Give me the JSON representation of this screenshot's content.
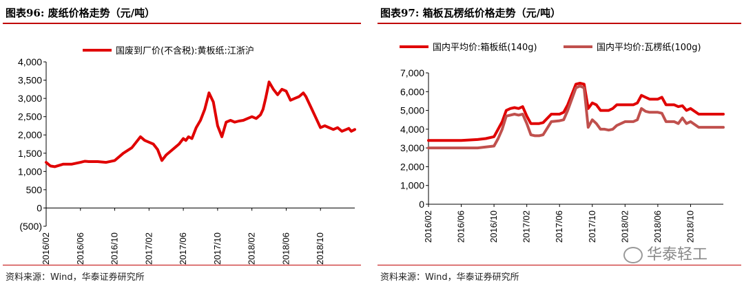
{
  "left": {
    "title": "图表96:   废纸价格走势（元/吨）",
    "source": "资料来源：Wind，华泰证券研究所",
    "chart_data": {
      "type": "line",
      "ylim": [
        -500,
        4000
      ],
      "yticks": [
        "(500)",
        "0",
        "500",
        "1,000",
        "1,500",
        "2,000",
        "2,500",
        "3,000",
        "3,500",
        "4,000"
      ],
      "ytick_values": [
        -500,
        0,
        500,
        1000,
        1500,
        2000,
        2500,
        3000,
        3500,
        4000
      ],
      "xticks": [
        "2016/02",
        "2016/06",
        "2016/10",
        "2017/02",
        "2017/06",
        "2017/10",
        "2018/02",
        "2018/06",
        "2018/10"
      ],
      "xrange": [
        0,
        36
      ],
      "legend_position": "top",
      "series": [
        {
          "name": "国废到厂价(不含税):黄板纸:江浙沪",
          "color": "#e00000",
          "x": [
            0,
            0.5,
            1,
            2,
            3,
            4,
            4.5,
            5,
            6,
            7,
            8,
            9,
            10,
            10.5,
            11,
            11.5,
            12,
            12.5,
            13,
            13.5,
            14,
            14.5,
            15,
            15.5,
            16,
            16.3,
            16.6,
            17,
            17.5,
            18,
            18.5,
            19,
            19.5,
            20,
            20.5,
            21,
            21.5,
            22,
            22.5,
            23,
            23.5,
            24,
            24.5,
            25,
            25.3,
            25.6,
            26,
            26.5,
            27,
            27.5,
            28,
            28.5,
            29,
            29.5,
            30,
            30.3,
            30.6,
            31,
            31.5,
            32,
            32.5,
            33,
            33.5,
            34,
            34.5,
            35,
            35.3,
            35.6,
            36
          ],
          "values": [
            1250,
            1150,
            1130,
            1200,
            1200,
            1250,
            1280,
            1270,
            1270,
            1250,
            1300,
            1500,
            1650,
            1800,
            1950,
            1850,
            1800,
            1750,
            1600,
            1300,
            1450,
            1550,
            1650,
            1750,
            1900,
            1850,
            1950,
            1900,
            2200,
            2400,
            2700,
            3150,
            2900,
            2250,
            1950,
            2350,
            2400,
            2350,
            2380,
            2400,
            2450,
            2500,
            2450,
            2550,
            2700,
            3000,
            3450,
            3250,
            3100,
            3250,
            3200,
            2950,
            3000,
            3050,
            3150,
            3050,
            2900,
            2700,
            2450,
            2200,
            2250,
            2200,
            2150,
            2200,
            2100,
            2150,
            2180,
            2100,
            2150
          ]
        }
      ]
    }
  },
  "right": {
    "title": "图表97:   箱板瓦楞纸价格走势（元/吨）",
    "source": "资料来源：Wind，华泰证券研究所",
    "chart_data": {
      "type": "line",
      "ylim": [
        0,
        7000
      ],
      "yticks": [
        "0",
        "1,000",
        "2,000",
        "3,000",
        "4,000",
        "5,000",
        "6,000",
        "7,000"
      ],
      "ytick_values": [
        0,
        1000,
        2000,
        3000,
        4000,
        5000,
        6000,
        7000
      ],
      "xticks": [
        "2016/02",
        "2016/06",
        "2016/10",
        "2017/02",
        "2017/06",
        "2017/10",
        "2018/02",
        "2018/06",
        "2018/10"
      ],
      "xrange": [
        0,
        36
      ],
      "legend_position": "top",
      "series": [
        {
          "name": "国内平均价:箱板纸(140g)",
          "color": "#e00000",
          "x": [
            0,
            2,
            4,
            6,
            7,
            8,
            8.5,
            9,
            9.5,
            10,
            10.5,
            11,
            11.5,
            12,
            12.5,
            13,
            13.5,
            14,
            15,
            16,
            16.5,
            17,
            18,
            18.5,
            19,
            19.5,
            20,
            20.5,
            21,
            21.5,
            22,
            22.5,
            23,
            24,
            25,
            25.5,
            26,
            26.5,
            27,
            28,
            28.5,
            29,
            30,
            30.5,
            31,
            31.5,
            32,
            33,
            34,
            35,
            36
          ],
          "values": [
            3400,
            3400,
            3400,
            3450,
            3500,
            3600,
            4000,
            4400,
            5000,
            5100,
            5150,
            5100,
            5200,
            4700,
            4300,
            4300,
            4300,
            4350,
            4800,
            4800,
            4900,
            5300,
            6400,
            6450,
            6400,
            5100,
            5400,
            5300,
            5000,
            5000,
            5000,
            5100,
            5300,
            5300,
            5300,
            5400,
            5800,
            5700,
            5600,
            5600,
            5700,
            5300,
            5300,
            5200,
            5250,
            5000,
            5100,
            4800,
            4800,
            4800,
            4800
          ]
        },
        {
          "name": "国内平均价:瓦楞纸(100g)",
          "color": "#c0504d",
          "x": [
            0,
            2,
            4,
            6,
            7,
            8,
            8.5,
            9,
            9.5,
            10,
            10.5,
            11,
            11.5,
            12,
            12.5,
            13,
            13.5,
            14,
            15,
            16,
            16.5,
            17,
            18,
            18.5,
            19,
            19.5,
            20,
            20.5,
            21,
            21.5,
            22,
            22.5,
            23,
            24,
            25,
            25.5,
            26,
            26.5,
            27,
            28,
            28.5,
            29,
            30,
            30.5,
            31,
            31.5,
            32,
            33,
            34,
            35,
            36
          ],
          "values": [
            3000,
            3000,
            3000,
            3000,
            3050,
            3100,
            3500,
            4000,
            4700,
            4750,
            4800,
            4750,
            4800,
            4300,
            3700,
            3650,
            3650,
            3700,
            4400,
            4450,
            4500,
            5000,
            6200,
            6300,
            6200,
            4100,
            4500,
            4300,
            4000,
            4000,
            3950,
            4000,
            4200,
            4400,
            4400,
            4500,
            5100,
            4950,
            4900,
            4900,
            4850,
            4400,
            4400,
            4300,
            4600,
            4300,
            4400,
            4100,
            4100,
            4100,
            4100
          ]
        }
      ]
    }
  },
  "watermark": {
    "text": "华泰轻工"
  }
}
